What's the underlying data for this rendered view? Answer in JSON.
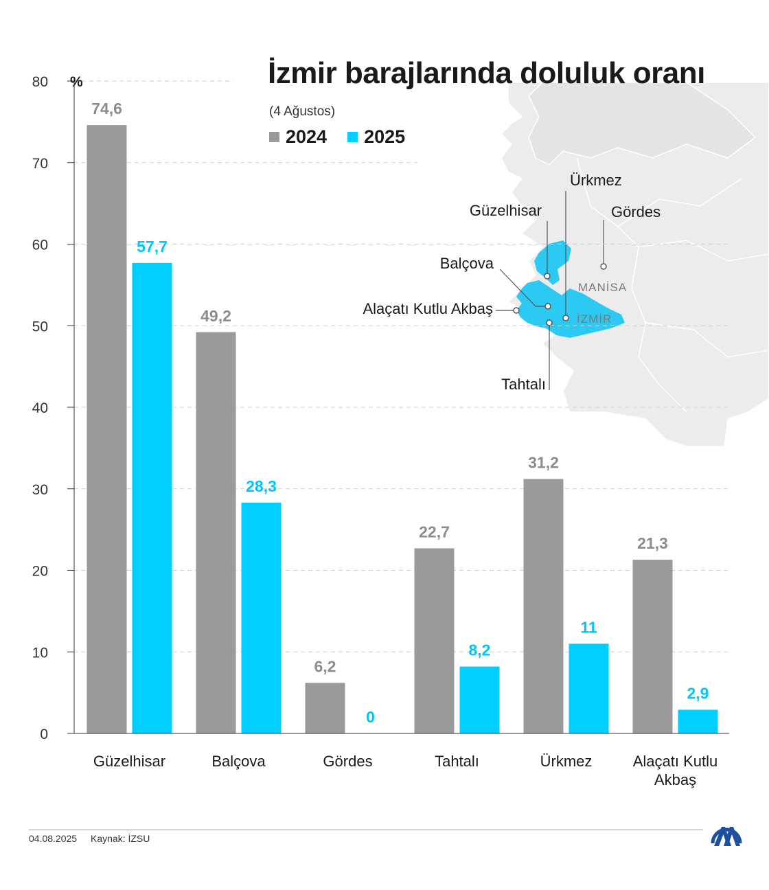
{
  "header": {
    "title": "İzmir barajlarında doluluk oranı",
    "subtitle": "(4 Ağustos)"
  },
  "legend": [
    {
      "label": "2024",
      "color": "#9a9a9a"
    },
    {
      "label": "2025",
      "color": "#00cfff"
    }
  ],
  "map": {
    "province_labels": [
      "MANİSA",
      "İZMİR"
    ],
    "dam_labels": [
      "Ürkmez",
      "Güzelhisar",
      "Gördes",
      "Balçova",
      "Alaçatı Kutlu Akbaş",
      "Tahtalı"
    ],
    "highlight_color": "#2cc9f3",
    "land_color": "#ececec"
  },
  "chart_data": {
    "type": "bar",
    "title": "İzmir barajlarında doluluk oranı",
    "subtitle": "(4 Ağustos)",
    "ylabel": "%",
    "ylim": [
      0,
      80
    ],
    "yticks": [
      0,
      10,
      20,
      30,
      40,
      50,
      60,
      70,
      80
    ],
    "grid": true,
    "legend_position": "top",
    "categories": [
      "Güzelhisar",
      "Balçova",
      "Gördes",
      "Tahtalı",
      "Ürkmez",
      "Alaçatı Kutlu Akbaş"
    ],
    "series": [
      {
        "name": "2024",
        "color": "#9a9a9a",
        "values": [
          74.6,
          49.2,
          6.2,
          22.7,
          31.2,
          21.3
        ],
        "labels": [
          "74,6",
          "49,2",
          "6,2",
          "22,7",
          "31,2",
          "21,3"
        ]
      },
      {
        "name": "2025",
        "color": "#00cfff",
        "values": [
          57.7,
          28.3,
          0,
          8.2,
          11,
          2.9
        ],
        "labels": [
          "57,7",
          "28,3",
          "0",
          "8,2",
          "11",
          "2,9"
        ]
      }
    ]
  },
  "footer": {
    "date": "04.08.2025",
    "source": "Kaynak: İZSU"
  }
}
